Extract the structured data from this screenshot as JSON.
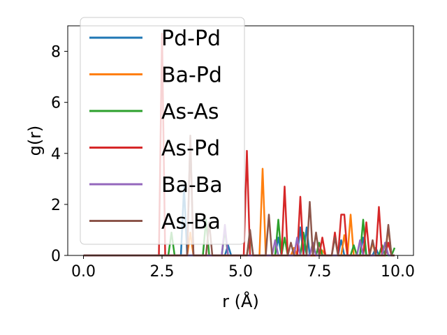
{
  "chart_data": {
    "type": "line",
    "xlabel": "r (Å)",
    "ylabel": "g(r)",
    "xlim": [
      -0.5,
      10.5
    ],
    "ylim": [
      0,
      9
    ],
    "xticks": [
      0.0,
      2.5,
      5.0,
      7.5,
      10.0
    ],
    "xtick_labels": [
      "0.0",
      "2.5",
      "5.0",
      "7.5",
      "10.0"
    ],
    "yticks": [
      0,
      2,
      4,
      6,
      8
    ],
    "ytick_labels": [
      "0",
      "2",
      "4",
      "6",
      "8"
    ],
    "grid": false,
    "legend_position": "upper-left",
    "series": [
      {
        "name": "Pd-Pd",
        "color": "#1f77b4",
        "peaks": [
          [
            3.2,
            2.7
          ],
          [
            4.6,
            0.4
          ],
          [
            6.2,
            0.7
          ],
          [
            6.9,
            1.1
          ],
          [
            7.1,
            1.1
          ],
          [
            8.2,
            0.6
          ],
          [
            8.9,
            0.7
          ],
          [
            9.3,
            0.3
          ],
          [
            9.6,
            0.5
          ]
        ]
      },
      {
        "name": "Ba-Pd",
        "color": "#ff7f0e",
        "peaks": [
          [
            3.4,
            0.9
          ],
          [
            5.7,
            3.4
          ],
          [
            6.7,
            0.3
          ],
          [
            7.6,
            0.2
          ],
          [
            8.3,
            0.8
          ],
          [
            8.5,
            1.6
          ],
          [
            9.2,
            0.5
          ],
          [
            9.7,
            1.1
          ]
        ]
      },
      {
        "name": "As-As",
        "color": "#2ca02c",
        "peaks": [
          [
            2.8,
            0.9
          ],
          [
            3.9,
            1.4
          ],
          [
            4.5,
            1.0
          ],
          [
            5.3,
            0.8
          ],
          [
            6.2,
            1.4
          ],
          [
            6.4,
            0.7
          ],
          [
            7.0,
            0.9
          ],
          [
            7.5,
            0.5
          ],
          [
            8.6,
            0.4
          ],
          [
            8.9,
            1.4
          ],
          [
            9.5,
            0.4
          ],
          [
            9.9,
            0.3
          ]
        ]
      },
      {
        "name": "As-Pd",
        "color": "#d62728",
        "peaks": [
          [
            2.5,
            8.7
          ],
          [
            3.4,
            4.6
          ],
          [
            5.2,
            4.1
          ],
          [
            6.4,
            2.7
          ],
          [
            6.9,
            2.3
          ],
          [
            7.6,
            0.7
          ],
          [
            8.0,
            0.9
          ],
          [
            8.2,
            1.6
          ],
          [
            8.3,
            1.6
          ],
          [
            9.0,
            1.3
          ],
          [
            9.4,
            1.9
          ],
          [
            9.7,
            0.5
          ]
        ]
      },
      {
        "name": "Ba-Ba",
        "color": "#9467bd",
        "peaks": [
          [
            4.5,
            1.2
          ],
          [
            6.1,
            0.6
          ],
          [
            6.8,
            0.7
          ],
          [
            7.3,
            0.5
          ],
          [
            8.8,
            0.6
          ],
          [
            9.6,
            0.5
          ]
        ]
      },
      {
        "name": "As-Ba",
        "color": "#8c564b",
        "peaks": [
          [
            3.4,
            4.7
          ],
          [
            4.0,
            1.3
          ],
          [
            5.3,
            1.0
          ],
          [
            5.9,
            1.6
          ],
          [
            6.6,
            0.5
          ],
          [
            7.2,
            2.1
          ],
          [
            7.4,
            0.9
          ],
          [
            8.0,
            0.7
          ],
          [
            9.2,
            0.6
          ],
          [
            9.7,
            1.2
          ]
        ]
      }
    ]
  }
}
